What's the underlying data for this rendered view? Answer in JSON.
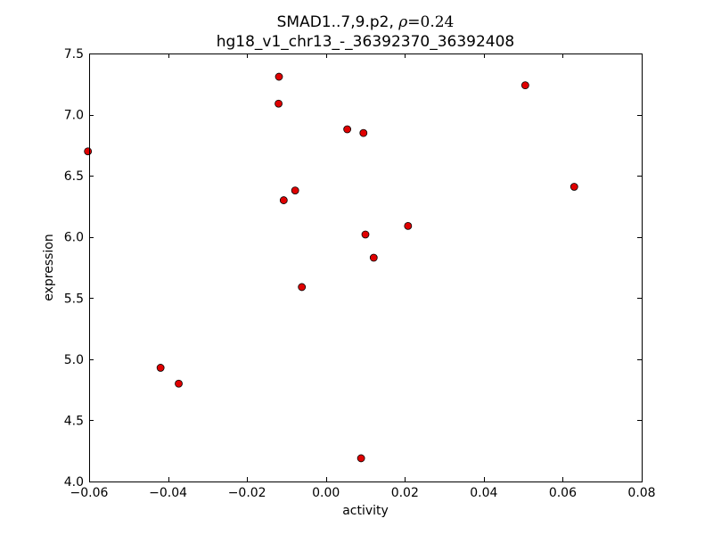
{
  "chart_data": {
    "type": "scatter",
    "title_line1_prefix": "SMAD1..7,9.p2, ",
    "title_rho_symbol": "ρ",
    "title_rho_value": "=0.24",
    "title_line2": "hg18_v1_chr13_-_36392370_36392408",
    "xlabel": "activity",
    "ylabel": "expression",
    "xlim": [
      -0.06,
      0.08
    ],
    "ylim": [
      4.0,
      7.5
    ],
    "xticks": [
      -0.06,
      -0.04,
      -0.02,
      0.0,
      0.02,
      0.04,
      0.06,
      0.08
    ],
    "xtick_labels": [
      "−0.06",
      "−0.04",
      "−0.02",
      "0.00",
      "0.02",
      "0.04",
      "0.06",
      "0.08"
    ],
    "yticks": [
      4.0,
      4.5,
      5.0,
      5.5,
      6.0,
      6.5,
      7.0,
      7.5
    ],
    "ytick_labels": [
      "4.0",
      "4.5",
      "5.0",
      "5.5",
      "6.0",
      "6.5",
      "7.0",
      "7.5"
    ],
    "marker_color": "#e00000",
    "points": [
      {
        "x": -0.0603,
        "y": 6.7
      },
      {
        "x": -0.0419,
        "y": 4.93
      },
      {
        "x": -0.0373,
        "y": 4.8
      },
      {
        "x": -0.0119,
        "y": 7.31
      },
      {
        "x": -0.012,
        "y": 7.09
      },
      {
        "x": -0.0107,
        "y": 6.3
      },
      {
        "x": -0.0078,
        "y": 6.38
      },
      {
        "x": -0.0061,
        "y": 5.59
      },
      {
        "x": 0.0054,
        "y": 6.88
      },
      {
        "x": 0.0095,
        "y": 6.85
      },
      {
        "x": 0.01,
        "y": 6.02
      },
      {
        "x": 0.0121,
        "y": 5.83
      },
      {
        "x": 0.0208,
        "y": 6.09
      },
      {
        "x": 0.0089,
        "y": 4.19
      },
      {
        "x": 0.0505,
        "y": 7.24
      },
      {
        "x": 0.0629,
        "y": 6.41
      }
    ]
  }
}
